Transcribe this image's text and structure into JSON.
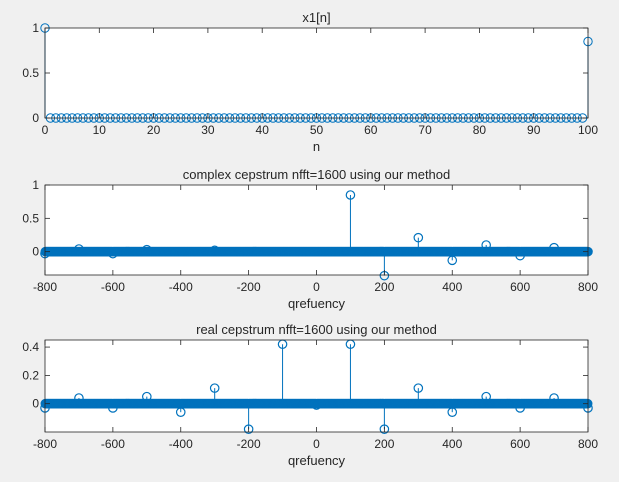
{
  "chart_data": [
    {
      "type": "stem",
      "title": "x1[n]",
      "xlabel": "n",
      "ylabel": "",
      "xlim": [
        0,
        100
      ],
      "ylim": [
        0,
        1
      ],
      "xticks": [
        0,
        10,
        20,
        30,
        40,
        50,
        60,
        70,
        80,
        90,
        100
      ],
      "xtick_labels": [
        "0",
        "10",
        "20",
        "30",
        "40",
        "50",
        "60",
        "70",
        "80",
        "90",
        "100"
      ],
      "yticks": [
        0,
        0.5,
        1
      ],
      "ytick_labels": [
        "0",
        "0.5",
        "1"
      ],
      "series": [
        {
          "name": "x1",
          "x_range": [
            0,
            100
          ],
          "x_step": 1,
          "default_value": 0,
          "nonzero": [
            {
              "x": 0,
              "y": 1.0
            },
            {
              "x": 100,
              "y": 0.85
            }
          ]
        }
      ]
    },
    {
      "type": "stem",
      "title": "complex cepstrum nfft=1600 using our method",
      "xlabel": "qrefuency",
      "ylabel": "",
      "xlim": [
        -800,
        800
      ],
      "ylim": [
        -0.35,
        1
      ],
      "xticks": [
        -800,
        -600,
        -400,
        -200,
        0,
        200,
        400,
        600,
        800
      ],
      "xtick_labels": [
        "-800",
        "-600",
        "-400",
        "-200",
        "0",
        "200",
        "400",
        "600",
        "800"
      ],
      "yticks": [
        0,
        0.5,
        1
      ],
      "ytick_labels": [
        "0",
        "0.5",
        "1"
      ],
      "series": [
        {
          "name": "complex cepstrum",
          "x_range": [
            -800,
            800
          ],
          "x_step": 1,
          "default_value": 0,
          "nonzero": [
            {
              "x": -800,
              "y": -0.03
            },
            {
              "x": -700,
              "y": 0.04
            },
            {
              "x": -600,
              "y": -0.03
            },
            {
              "x": -500,
              "y": 0.03
            },
            {
              "x": -300,
              "y": 0.02
            },
            {
              "x": 100,
              "y": 0.85
            },
            {
              "x": 200,
              "y": -0.36
            },
            {
              "x": 300,
              "y": 0.21
            },
            {
              "x": 400,
              "y": -0.13
            },
            {
              "x": 500,
              "y": 0.1
            },
            {
              "x": 600,
              "y": -0.06
            },
            {
              "x": 700,
              "y": 0.06
            }
          ]
        }
      ]
    },
    {
      "type": "stem",
      "title": "real cepstrum nfft=1600 using our method",
      "xlabel": "qrefuency",
      "ylabel": "",
      "xlim": [
        -800,
        800
      ],
      "ylim": [
        -0.2,
        0.45
      ],
      "xticks": [
        -800,
        -600,
        -400,
        -200,
        0,
        200,
        400,
        600,
        800
      ],
      "xtick_labels": [
        "-800",
        "-600",
        "-400",
        "-200",
        "0",
        "200",
        "400",
        "600",
        "800"
      ],
      "yticks": [
        0,
        0.2,
        0.4
      ],
      "ytick_labels": [
        "0",
        "0.2",
        "0.4"
      ],
      "series": [
        {
          "name": "real cepstrum",
          "x_range": [
            -800,
            800
          ],
          "x_step": 1,
          "default_value": 0,
          "nonzero": [
            {
              "x": -800,
              "y": -0.03
            },
            {
              "x": -700,
              "y": 0.04
            },
            {
              "x": -600,
              "y": -0.03
            },
            {
              "x": -500,
              "y": 0.05
            },
            {
              "x": -400,
              "y": -0.06
            },
            {
              "x": -300,
              "y": 0.11
            },
            {
              "x": -200,
              "y": -0.18
            },
            {
              "x": -100,
              "y": 0.42
            },
            {
              "x": 0,
              "y": -0.01
            },
            {
              "x": 100,
              "y": 0.42
            },
            {
              "x": 200,
              "y": -0.18
            },
            {
              "x": 300,
              "y": 0.11
            },
            {
              "x": 400,
              "y": -0.06
            },
            {
              "x": 500,
              "y": 0.05
            },
            {
              "x": 600,
              "y": -0.03
            },
            {
              "x": 700,
              "y": 0.04
            },
            {
              "x": 800,
              "y": -0.03
            }
          ]
        }
      ]
    }
  ],
  "colors": {
    "stem": "#0072bd",
    "axis": "#262626",
    "axes_bg": "#ffffff",
    "figure_bg": "#f0f0f0"
  }
}
